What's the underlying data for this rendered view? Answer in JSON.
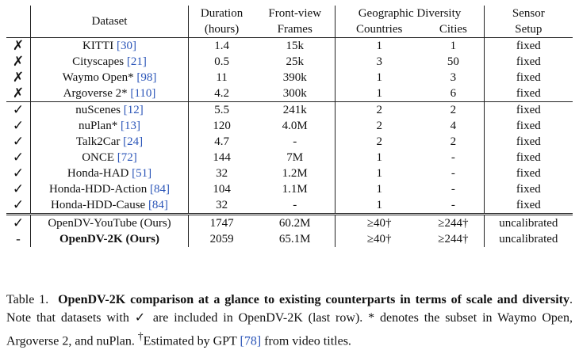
{
  "table": {
    "headers": {
      "dataset": "Dataset",
      "duration": "Duration",
      "duration_unit": "(hours)",
      "frames": "Front-view",
      "frames_sub": "Frames",
      "geo": "Geographic Diversity",
      "countries": "Countries",
      "cities": "Cities",
      "sensor": "Sensor",
      "sensor_sub": "Setup"
    },
    "rows": [
      {
        "mark": "✗",
        "name": "KITTI ",
        "ref": "[30]",
        "duration": "1.4",
        "frames": "15k",
        "countries": "1",
        "cities": "1",
        "sensor": "fixed"
      },
      {
        "mark": "✗",
        "name": "Cityscapes ",
        "ref": "[21]",
        "duration": "0.5",
        "frames": "25k",
        "countries": "3",
        "cities": "50",
        "sensor": "fixed"
      },
      {
        "mark": "✗",
        "name": "Waymo Open* ",
        "ref": "[98]",
        "duration": "11",
        "frames": "390k",
        "countries": "1",
        "cities": "3",
        "sensor": "fixed"
      },
      {
        "mark": "✗",
        "name": "Argoverse 2* ",
        "ref": "[110]",
        "duration": "4.2",
        "frames": "300k",
        "countries": "1",
        "cities": "6",
        "sensor": "fixed"
      },
      {
        "mark": "✓",
        "name": "nuScenes ",
        "ref": "[12]",
        "duration": "5.5",
        "frames": "241k",
        "countries": "2",
        "cities": "2",
        "sensor": "fixed"
      },
      {
        "mark": "✓",
        "name": "nuPlan* ",
        "ref": "[13]",
        "duration": "120",
        "frames": "4.0M",
        "countries": "2",
        "cities": "4",
        "sensor": "fixed"
      },
      {
        "mark": "✓",
        "name": "Talk2Car ",
        "ref": "[24]",
        "duration": "4.7",
        "frames": "-",
        "countries": "2",
        "cities": "2",
        "sensor": "fixed"
      },
      {
        "mark": "✓",
        "name": "ONCE ",
        "ref": "[72]",
        "duration": "144",
        "frames": "7M",
        "countries": "1",
        "cities": "-",
        "sensor": "fixed"
      },
      {
        "mark": "✓",
        "name": "Honda-HAD ",
        "ref": "[51]",
        "duration": "32",
        "frames": "1.2M",
        "countries": "1",
        "cities": "-",
        "sensor": "fixed"
      },
      {
        "mark": "✓",
        "name": "Honda-HDD-Action ",
        "ref": "[84]",
        "duration": "104",
        "frames": "1.1M",
        "countries": "1",
        "cities": "-",
        "sensor": "fixed"
      },
      {
        "mark": "✓",
        "name": "Honda-HDD-Cause ",
        "ref": "[84]",
        "duration": "32",
        "frames": "-",
        "countries": "1",
        "cities": "-",
        "sensor": "fixed"
      },
      {
        "mark": "✓",
        "name": "OpenDV-YouTube (Ours)",
        "ref": "",
        "duration": "1747",
        "frames": "60.2M",
        "countries": "≥40†",
        "cities": "≥244†",
        "sensor": "uncalibrated"
      },
      {
        "mark": "-",
        "name": "OpenDV-2K (Ours)",
        "ref": "",
        "duration": "2059",
        "frames": "65.1M",
        "countries": "≥40†",
        "cities": "≥244†",
        "sensor": "uncalibrated"
      }
    ]
  },
  "caption": {
    "label": "Table 1.",
    "title": "OpenDV-2K comparison at a glance to existing counterparts in terms of scale and diversity",
    "text1": ". Note that datasets with ",
    "check": "✓",
    "text2": " are included in OpenDV-2K (last row). * denotes the subset in Waymo Open, Argoverse 2, and nuPlan. ",
    "dagger": "†",
    "text3": "Estimated by GPT ",
    "ref": "[78]",
    "text4": " from video titles."
  }
}
